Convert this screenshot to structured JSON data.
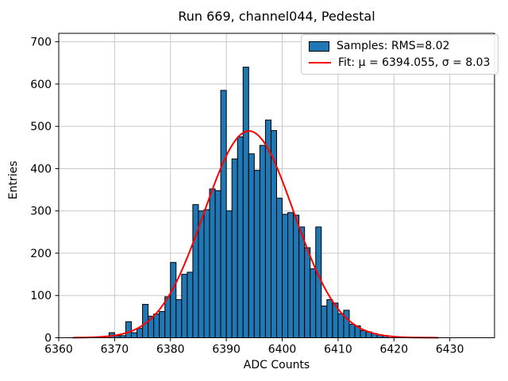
{
  "title": "Run 669, channel044, Pedestal",
  "xlabel": "ADC Counts",
  "ylabel": "Entries",
  "legend": {
    "samples_label": "Samples: RMS=8.02",
    "fit_label": "Fit: μ = 6394.055, σ = 8.03"
  },
  "colors": {
    "bar_fill": "#1f77b4",
    "bar_edge": "#000000",
    "fit_line": "#ff0000",
    "grid": "#c8c8c8",
    "spine": "#000000",
    "background": "#ffffff"
  },
  "chart_data": {
    "type": "bar",
    "title": "Run 669, channel044, Pedestal",
    "xlabel": "ADC Counts",
    "ylabel": "Entries",
    "xlim": [
      6360,
      6438
    ],
    "ylim": [
      0,
      720
    ],
    "xticks": [
      6360,
      6370,
      6380,
      6390,
      6400,
      6410,
      6420,
      6430
    ],
    "yticks": [
      0,
      100,
      200,
      300,
      400,
      500,
      600,
      700
    ],
    "grid": true,
    "legend_position": "upper right",
    "histogram": {
      "bin_start": 6369,
      "bin_width": 1,
      "counts": [
        12,
        5,
        5,
        38,
        12,
        22,
        79,
        51,
        56,
        62,
        97,
        178,
        90,
        150,
        155,
        315,
        300,
        303,
        352,
        348,
        585,
        300,
        423,
        475,
        640,
        435,
        396,
        455,
        515,
        490,
        330,
        292,
        296,
        290,
        262,
        213,
        163,
        262,
        75,
        90,
        82,
        57,
        65,
        32,
        28,
        17,
        14,
        10,
        7,
        5
      ]
    },
    "fit": {
      "type": "gaussian",
      "mu": 6394.055,
      "sigma": 8.03,
      "amplitude": 489,
      "x_start": 6362.5,
      "x_end": 6428
    }
  }
}
